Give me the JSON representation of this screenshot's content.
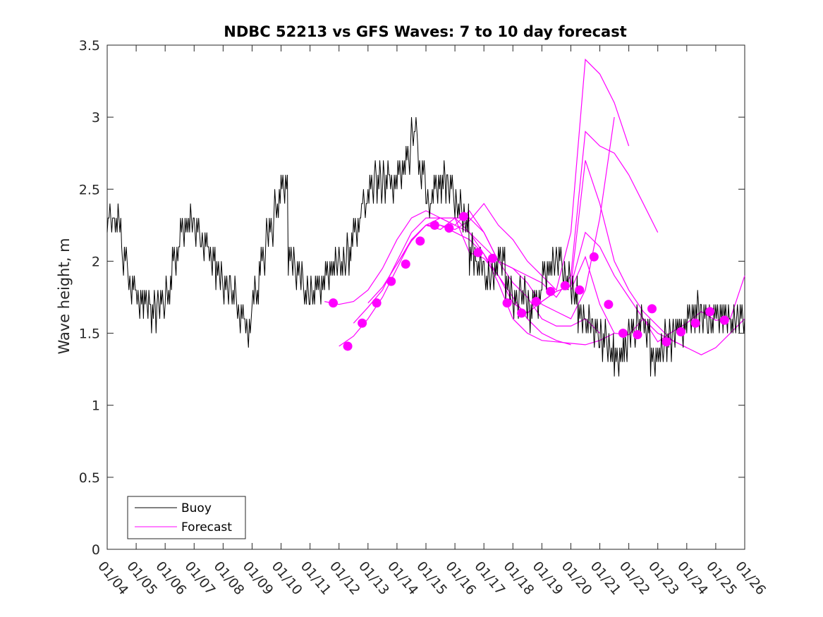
{
  "chart_data": {
    "type": "line",
    "title": "NDBC 52213 vs GFS Waves: 7 to 10 day forecast",
    "xlabel": "",
    "ylabel": "Wave height, m",
    "ylim": [
      0,
      3.5
    ],
    "xlim": [
      0,
      22
    ],
    "x_tick_labels": [
      "01/04",
      "01/05",
      "01/06",
      "01/07",
      "01/08",
      "01/09",
      "01/10",
      "01/11",
      "01/12",
      "01/13",
      "01/14",
      "01/15",
      "01/16",
      "01/17",
      "01/18",
      "01/19",
      "01/20",
      "01/21",
      "01/22",
      "01/23",
      "01/24",
      "01/25",
      "01/26"
    ],
    "y_ticks": [
      0,
      0.5,
      1,
      1.5,
      2,
      2.5,
      3,
      3.5
    ],
    "y_tick_labels": [
      "0",
      "0.5",
      "1",
      "1.5",
      "2",
      "2.5",
      "3",
      "3.5"
    ],
    "grid": false,
    "legend_position": "bottom-left",
    "colors": {
      "buoy": "#000000",
      "forecast": "#ff00ff",
      "axis": "#262626"
    },
    "buoy_series": {
      "name": "Buoy",
      "x": [
        0,
        0.25,
        0.5,
        0.75,
        1,
        1.25,
        1.5,
        1.75,
        2,
        2.25,
        2.5,
        2.75,
        3,
        3.25,
        3.5,
        3.75,
        4,
        4.25,
        4.5,
        4.75,
        5,
        5.25,
        5.5,
        5.75,
        6,
        6.25,
        6.5,
        6.75,
        7,
        7.25,
        7.5,
        7.75,
        8,
        8.25,
        8.5,
        8.75,
        9,
        9.25,
        9.5,
        9.75,
        10,
        10.25,
        10.5,
        10.75,
        11,
        11.25,
        11.5,
        11.75,
        12,
        12.25,
        12.5,
        12.75,
        13,
        13.25,
        13.5,
        13.75,
        14,
        14.25,
        14.5,
        14.75,
        15,
        15.25,
        15.5,
        15.75,
        16,
        16.25,
        16.5,
        16.75,
        17,
        17.25,
        17.5,
        17.75,
        18,
        18.25,
        18.5,
        18.75,
        19,
        19.25,
        19.5,
        19.75,
        20,
        20.25,
        20.5,
        20.75,
        21,
        21.25,
        21.5,
        21.75,
        22
      ],
      "values": [
        2.3,
        2.25,
        2.0,
        1.8,
        1.7,
        1.7,
        1.65,
        1.7,
        1.75,
        2.0,
        2.2,
        2.25,
        2.2,
        2.1,
        2.0,
        1.9,
        1.8,
        1.75,
        1.6,
        1.5,
        1.75,
        2.0,
        2.2,
        2.35,
        2.5,
        2.0,
        1.9,
        1.75,
        1.75,
        1.8,
        1.9,
        1.95,
        1.95,
        2.05,
        2.2,
        2.4,
        2.5,
        2.55,
        2.55,
        2.5,
        2.6,
        2.7,
        2.9,
        2.6,
        2.4,
        2.5,
        2.55,
        2.5,
        2.35,
        2.25,
        2.05,
        1.95,
        1.85,
        1.9,
        2.0,
        1.8,
        1.7,
        1.75,
        1.65,
        1.7,
        1.9,
        1.95,
        2.0,
        1.85,
        1.75,
        1.6,
        1.55,
        1.5,
        1.45,
        1.35,
        1.3,
        1.4,
        1.5,
        1.55,
        1.5,
        1.3,
        1.35,
        1.45,
        1.5,
        1.5,
        1.6,
        1.65,
        1.6,
        1.55,
        1.6,
        1.6,
        1.55,
        1.6,
        1.6
      ]
    },
    "forecast_series": [
      {
        "name": "Forecast",
        "x": [
          7.5,
          8.0,
          8.5,
          9.0,
          9.5,
          10.0,
          10.5,
          11.0,
          11.5,
          12.0,
          12.5,
          13.0,
          13.5,
          14.0,
          14.5,
          15.0,
          15.5,
          16.0,
          16.5,
          17.0,
          17.5
        ],
        "values": [
          1.72,
          1.7,
          1.72,
          1.8,
          1.95,
          2.15,
          2.3,
          2.35,
          2.3,
          2.25,
          2.2,
          2.05,
          1.85,
          1.6,
          1.5,
          1.45,
          1.44,
          1.43,
          1.42,
          1.45,
          1.5
        ]
      },
      {
        "name": "Forecast",
        "x": [
          8.0,
          8.5,
          9.0,
          9.5,
          10.0,
          10.5,
          11.0,
          11.5,
          12.0,
          12.5,
          13.0,
          13.5,
          14.0,
          14.5,
          15.0,
          15.5,
          16.0
        ],
        "values": [
          1.41,
          1.48,
          1.6,
          1.75,
          1.95,
          2.15,
          2.25,
          2.25,
          2.2,
          2.15,
          2.05,
          1.9,
          1.75,
          1.6,
          1.5,
          1.45,
          1.42
        ]
      },
      {
        "name": "Forecast",
        "x": [
          8.5,
          9.0,
          9.5,
          10.0,
          10.5,
          11.0,
          11.5,
          12.0,
          12.5,
          13.0,
          13.5,
          14.0,
          14.5,
          15.0,
          15.5,
          16.0,
          16.5,
          17.0
        ],
        "values": [
          1.57,
          1.68,
          1.8,
          2.0,
          2.2,
          2.3,
          2.3,
          2.25,
          2.35,
          2.2,
          2.0,
          1.85,
          1.75,
          1.6,
          1.55,
          1.55,
          1.6,
          1.5
        ]
      },
      {
        "name": "Forecast",
        "x": [
          9.0,
          9.5,
          10.0,
          10.5,
          11.0,
          11.5,
          12.0,
          12.5,
          13.0,
          13.5,
          14.0,
          14.5,
          15.0,
          15.5,
          16.0,
          16.5,
          17.0,
          17.5
        ],
        "values": [
          1.71,
          1.82,
          1.98,
          2.15,
          2.25,
          2.3,
          2.3,
          2.3,
          2.2,
          2.0,
          1.95,
          1.85,
          1.7,
          1.65,
          1.6,
          1.8,
          2.3,
          3.0
        ]
      },
      {
        "name": "Forecast",
        "x": [
          10.0,
          10.5,
          11.0,
          11.5,
          12.0,
          12.5,
          13.0,
          13.5,
          14.0,
          14.5,
          15.0,
          15.5,
          16.0,
          16.5,
          17.0,
          17.5,
          18.0
        ],
        "values": [
          1.98,
          2.14,
          2.25,
          2.25,
          2.22,
          2.28,
          2.4,
          2.25,
          2.15,
          2.0,
          1.9,
          1.8,
          2.2,
          3.4,
          3.3,
          3.1,
          2.8
        ]
      },
      {
        "name": "Forecast",
        "x": [
          11.0,
          11.5,
          12.0,
          12.5,
          13.0,
          13.5,
          14.0,
          14.5,
          15.0,
          15.5,
          16.0,
          16.5,
          17.0,
          17.5,
          18.0,
          18.5,
          19.0
        ],
        "values": [
          2.25,
          2.22,
          2.3,
          2.2,
          2.1,
          2.0,
          1.95,
          1.9,
          1.85,
          1.75,
          1.9,
          2.9,
          2.8,
          2.75,
          2.6,
          2.4,
          2.2
        ]
      },
      {
        "name": "Forecast",
        "x": [
          12.0,
          12.5,
          13.0,
          13.5,
          14.0,
          14.5,
          15.0,
          15.5,
          16.0,
          16.5,
          17.0,
          17.5,
          18.0,
          18.5,
          19.0,
          19.5,
          20.0
        ],
        "values": [
          2.3,
          2.06,
          2.02,
          1.9,
          1.71,
          1.64,
          1.72,
          1.79,
          1.83,
          2.7,
          2.4,
          2.0,
          1.8,
          1.65,
          1.55,
          1.45,
          1.4
        ]
      },
      {
        "name": "Forecast",
        "x": [
          14.0,
          14.5,
          15.0,
          15.5,
          16.0,
          16.5,
          17.0,
          17.5,
          18.0,
          18.5,
          19.0,
          19.5,
          20.0,
          20.5,
          21.0,
          21.5,
          22.0
        ],
        "values": [
          1.71,
          1.64,
          1.72,
          1.79,
          1.83,
          2.2,
          2.1,
          1.9,
          1.75,
          1.6,
          1.5,
          1.45,
          1.4,
          1.35,
          1.4,
          1.5,
          1.6
        ]
      },
      {
        "name": "Forecast",
        "x": [
          16.0,
          16.5,
          17.0,
          17.5,
          18.0,
          18.5,
          19.0,
          19.5,
          20.0,
          20.5,
          21.0,
          21.5,
          22.0
        ],
        "values": [
          1.8,
          2.03,
          1.7,
          1.5,
          1.49,
          1.6,
          1.44,
          1.51,
          1.57,
          1.65,
          1.59,
          1.6,
          1.9
        ]
      }
    ],
    "forecast_markers": {
      "x": [
        7.8,
        8.3,
        8.8,
        9.3,
        9.8,
        10.3,
        10.8,
        11.3,
        11.8,
        12.3,
        12.8,
        13.3,
        13.8,
        14.3,
        14.8,
        15.3,
        15.8,
        16.3,
        16.8,
        17.3,
        17.8,
        18.3,
        18.8,
        19.3,
        19.8,
        20.3,
        20.8,
        21.3
      ],
      "values": [
        1.71,
        1.41,
        1.57,
        1.71,
        1.86,
        1.98,
        2.14,
        2.25,
        2.23,
        2.31,
        2.06,
        2.02,
        1.71,
        1.64,
        1.72,
        1.79,
        1.83,
        1.8,
        2.03,
        1.7,
        1.5,
        1.49,
        1.67,
        1.44,
        1.51,
        1.57,
        1.65,
        1.59
      ]
    },
    "legend": [
      {
        "label": "Buoy",
        "color": "#000000"
      },
      {
        "label": "Forecast",
        "color": "#ff00ff"
      }
    ]
  }
}
